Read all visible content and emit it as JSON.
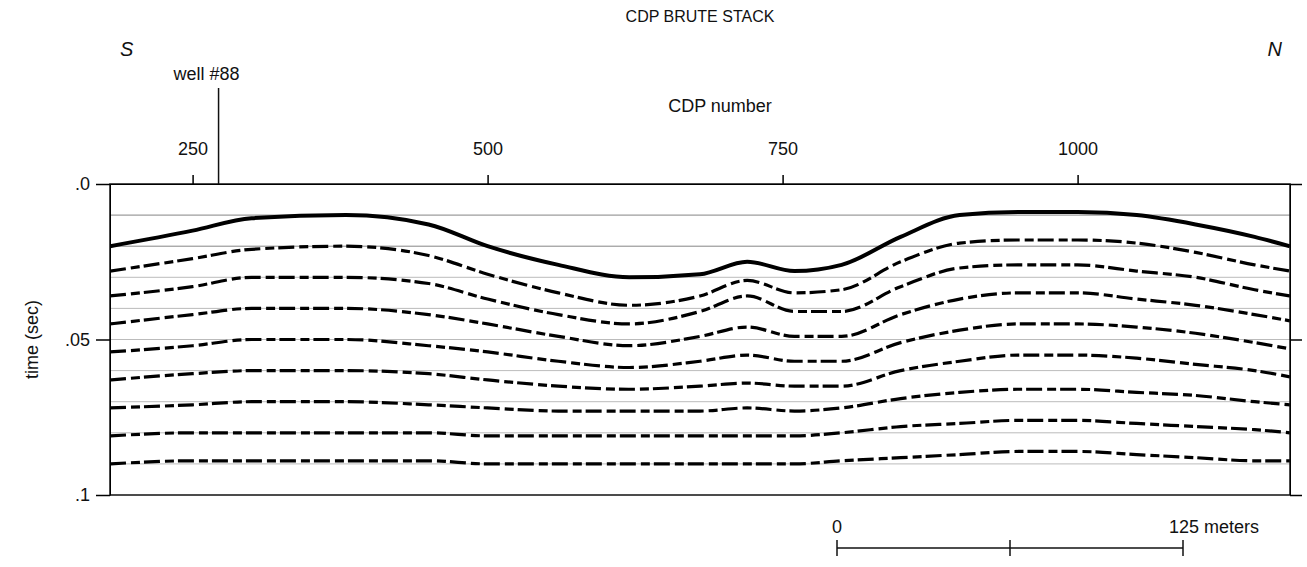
{
  "chart_data": {
    "type": "line",
    "title": "CDP BRUTE STACK",
    "x_label": "CDP number",
    "y_label": "time (sec)",
    "direction_labels": [
      "S",
      "N"
    ],
    "annotations": [
      {
        "text": "well #88",
        "x": 272
      }
    ],
    "x": [
      180,
      250,
      300,
      380,
      450,
      500,
      560,
      620,
      680,
      720,
      760,
      800,
      850,
      900,
      950,
      1000,
      1050,
      1100,
      1150,
      1180
    ],
    "series": [
      {
        "color": "#000000",
        "values": [
          0.02,
          0.015,
          0.011,
          0.01,
          0.013,
          0.02,
          0.026,
          0.03,
          0.029,
          0.025,
          0.028,
          0.026,
          0.017,
          0.01,
          0.009,
          0.009,
          0.01,
          0.013,
          0.017,
          0.02
        ]
      },
      {
        "color": "#000000",
        "values": [
          0.028,
          0.024,
          0.021,
          0.02,
          0.023,
          0.029,
          0.035,
          0.039,
          0.036,
          0.031,
          0.035,
          0.034,
          0.025,
          0.019,
          0.018,
          0.018,
          0.019,
          0.022,
          0.026,
          0.028
        ]
      },
      {
        "color": "#000000",
        "values": [
          0.036,
          0.033,
          0.03,
          0.03,
          0.032,
          0.037,
          0.042,
          0.045,
          0.041,
          0.036,
          0.041,
          0.041,
          0.033,
          0.027,
          0.026,
          0.026,
          0.028,
          0.03,
          0.034,
          0.036
        ]
      },
      {
        "color": "#000000",
        "values": [
          0.045,
          0.042,
          0.04,
          0.04,
          0.042,
          0.045,
          0.049,
          0.052,
          0.049,
          0.046,
          0.049,
          0.049,
          0.042,
          0.037,
          0.035,
          0.035,
          0.037,
          0.039,
          0.042,
          0.044
        ]
      },
      {
        "color": "#000000",
        "values": [
          0.054,
          0.052,
          0.05,
          0.05,
          0.052,
          0.054,
          0.057,
          0.059,
          0.057,
          0.055,
          0.057,
          0.057,
          0.051,
          0.047,
          0.045,
          0.045,
          0.046,
          0.048,
          0.051,
          0.053
        ]
      },
      {
        "color": "#000000",
        "values": [
          0.063,
          0.061,
          0.06,
          0.06,
          0.061,
          0.063,
          0.065,
          0.066,
          0.065,
          0.064,
          0.065,
          0.065,
          0.06,
          0.057,
          0.055,
          0.055,
          0.056,
          0.058,
          0.06,
          0.062
        ]
      },
      {
        "color": "#000000",
        "values": [
          0.072,
          0.071,
          0.07,
          0.07,
          0.071,
          0.072,
          0.073,
          0.073,
          0.073,
          0.072,
          0.073,
          0.072,
          0.069,
          0.067,
          0.066,
          0.066,
          0.067,
          0.068,
          0.07,
          0.071
        ]
      },
      {
        "color": "#000000",
        "values": [
          0.081,
          0.08,
          0.08,
          0.08,
          0.08,
          0.081,
          0.081,
          0.081,
          0.081,
          0.081,
          0.081,
          0.08,
          0.078,
          0.077,
          0.076,
          0.076,
          0.077,
          0.078,
          0.079,
          0.08
        ]
      },
      {
        "color": "#000000",
        "values": [
          0.09,
          0.089,
          0.089,
          0.089,
          0.089,
          0.09,
          0.09,
          0.09,
          0.09,
          0.09,
          0.09,
          0.089,
          0.088,
          0.087,
          0.086,
          0.086,
          0.087,
          0.088,
          0.089,
          0.089
        ]
      }
    ],
    "xlim": [
      180,
      1180
    ],
    "xticks": [
      250,
      500,
      750,
      1000
    ],
    "ylim": [
      0,
      0.1
    ],
    "yticks": [
      {
        "value": 0,
        "label": ".0"
      },
      {
        "value": 0.05,
        "label": ".05"
      },
      {
        "value": 0.1,
        "label": ".1"
      }
    ],
    "timing_lines": [
      0.01,
      0.02,
      0.03,
      0.04,
      0.05,
      0.06,
      0.07,
      0.08,
      0.09
    ],
    "scale_bar": {
      "ticks": [
        0,
        62.5,
        125
      ],
      "labels": [
        "0",
        null,
        "125 meters"
      ]
    }
  }
}
